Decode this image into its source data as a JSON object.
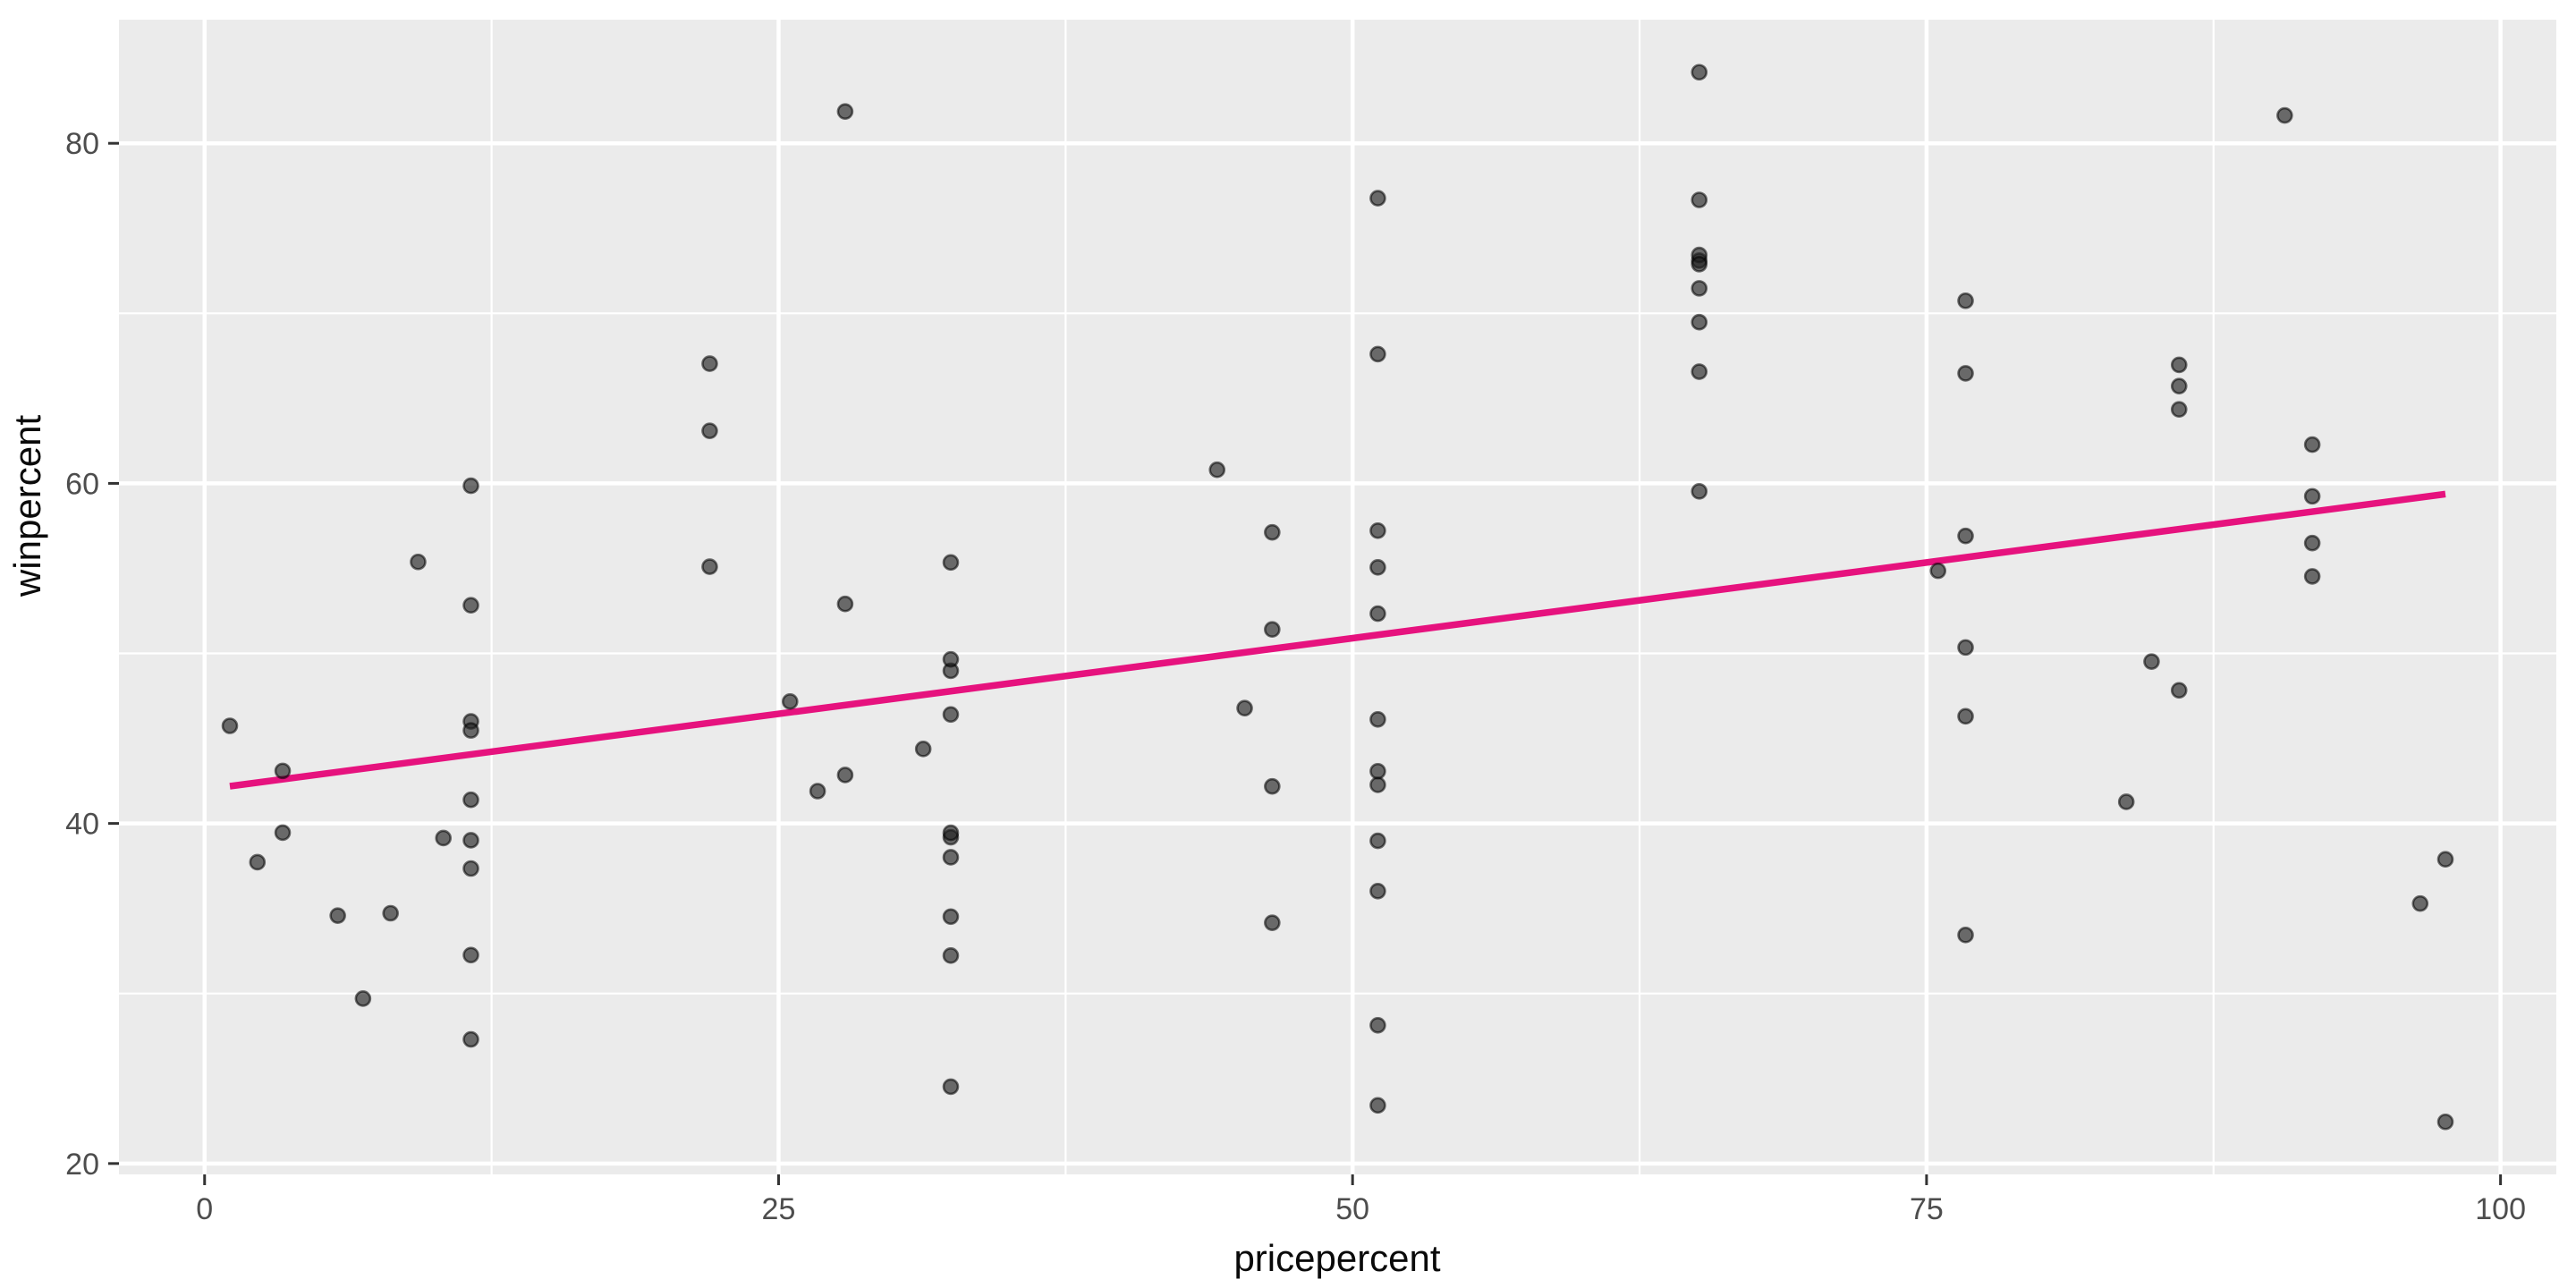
{
  "figure": {
    "kind": "ggplot-style scatter plot with linear trend line",
    "background": "#FFFFFF"
  },
  "chart_data": {
    "type": "scatter",
    "title": "",
    "xlabel": "pricepercent",
    "ylabel": "winpercent",
    "x_ticks": [
      0,
      25,
      50,
      75,
      100
    ],
    "x_minor_ticks": [
      12.5,
      37.5,
      62.5,
      87.5
    ],
    "y_ticks": [
      20,
      40,
      60,
      80
    ],
    "y_minor_ticks": [
      30,
      50,
      70
    ],
    "xlim": [
      -3.73,
      102.43
    ],
    "ylim": [
      19.36,
      87.27
    ],
    "grid": "white major and minor gridlines on gray panel",
    "legend_position": "none",
    "points": [
      [
        86.0,
        66.97
      ],
      [
        51.1,
        67.6
      ],
      [
        11.6,
        32.26
      ],
      [
        51.1,
        46.12
      ],
      [
        51.1,
        52.34
      ],
      [
        76.7,
        50.35
      ],
      [
        76.7,
        56.91
      ],
      [
        51.1,
        23.42
      ],
      [
        32.5,
        38.01
      ],
      [
        32.5,
        34.52
      ],
      [
        51.1,
        38.98
      ],
      [
        51.1,
        36.02
      ],
      [
        32.5,
        24.52
      ],
      [
        51.1,
        42.27
      ],
      [
        3.4,
        39.46
      ],
      [
        3.4,
        43.09
      ],
      [
        32.5,
        39.19
      ],
      [
        45.3,
        46.78
      ],
      [
        46.5,
        57.12
      ],
      [
        46.5,
        34.16
      ],
      [
        46.5,
        51.41
      ],
      [
        46.5,
        42.18
      ],
      [
        9.3,
        55.38
      ],
      [
        91.8,
        62.28
      ],
      [
        91.8,
        56.49
      ],
      [
        91.8,
        59.24
      ],
      [
        51.1,
        28.13
      ],
      [
        51.1,
        57.22
      ],
      [
        51.1,
        76.77
      ],
      [
        11.6,
        41.39
      ],
      [
        10.4,
        39.14
      ],
      [
        27.9,
        52.91
      ],
      [
        65.1,
        71.47
      ],
      [
        65.1,
        66.57
      ],
      [
        32.5,
        46.41
      ],
      [
        51.1,
        55.06
      ],
      [
        65.1,
        73.1
      ],
      [
        44.1,
        60.8
      ],
      [
        86.0,
        64.35
      ],
      [
        86.0,
        47.83
      ],
      [
        91.8,
        54.53
      ],
      [
        32.5,
        55.35
      ],
      [
        76.7,
        70.74
      ],
      [
        76.7,
        66.47
      ],
      [
        97.6,
        22.45
      ],
      [
        32.5,
        39.45
      ],
      [
        76.7,
        46.3
      ],
      [
        65.1,
        69.48
      ],
      [
        2.3,
        37.72
      ],
      [
        83.7,
        41.27
      ],
      [
        11.6,
        37.35
      ],
      [
        27.9,
        81.87
      ],
      [
        65.1,
        84.18
      ],
      [
        65.1,
        73.43
      ],
      [
        65.1,
        72.89
      ],
      [
        96.5,
        35.29
      ],
      [
        86.0,
        65.72
      ],
      [
        6.9,
        29.7
      ],
      [
        27.9,
        42.85
      ],
      [
        8.1,
        34.72
      ],
      [
        22.0,
        63.09
      ],
      [
        22.0,
        55.1
      ],
      [
        97.6,
        37.89
      ],
      [
        11.6,
        46.0
      ],
      [
        65.1,
        76.67
      ],
      [
        65.1,
        59.53
      ],
      [
        11.6,
        59.86
      ],
      [
        11.6,
        52.83
      ],
      [
        22.0,
        67.04
      ],
      [
        5.8,
        34.58
      ],
      [
        76.7,
        33.44
      ],
      [
        32.5,
        32.23
      ],
      [
        11.6,
        27.3
      ],
      [
        75.5,
        54.86
      ],
      [
        32.5,
        48.98
      ],
      [
        51.1,
        43.07
      ],
      [
        1.1,
        45.74
      ],
      [
        32.5,
        49.65
      ],
      [
        25.5,
        47.17
      ],
      [
        90.6,
        81.64
      ],
      [
        11.6,
        45.47
      ],
      [
        11.6,
        39.01
      ],
      [
        31.3,
        44.38
      ],
      [
        26.7,
        41.9
      ],
      [
        84.8,
        49.52
      ]
    ],
    "trend_line": {
      "model": "linear",
      "x_start": 1.1,
      "y_start": 42.19,
      "x_end": 97.6,
      "y_end": 59.37,
      "color": "#E6127E"
    }
  },
  "style": {
    "panel_bg": "#EBEBEB",
    "grid_color": "#FFFFFF",
    "point_fill": "#1F1F1F",
    "point_fill_opacity": 0.64,
    "point_stroke": "#000000",
    "point_stroke_opacity": 0.55,
    "trend_color": "#E6127E",
    "axis_text_color": "#4D4D4D",
    "axis_title_color": "#0A0A0A",
    "tick_mark_color": "#333333"
  }
}
